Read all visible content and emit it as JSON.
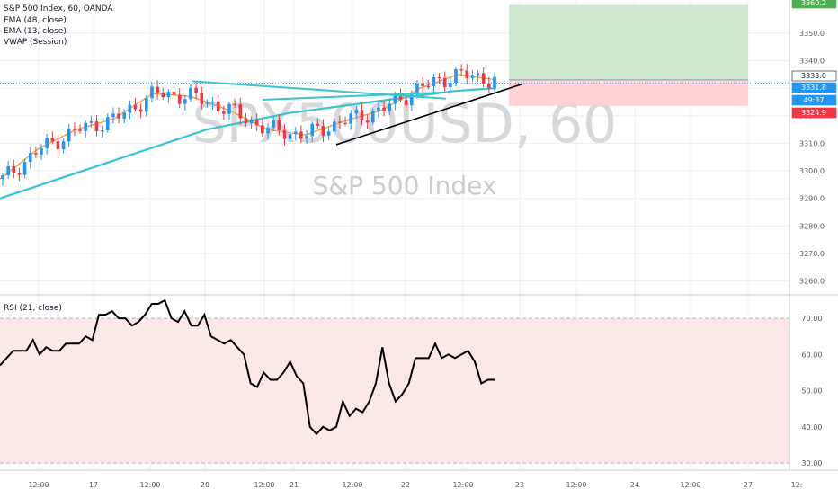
{
  "header": {
    "symbol_line": "S&P 500 Index, 60, OANDA",
    "indicators": [
      "EMA (48, close)",
      "EMA (13, close)",
      "VWAP (Session)"
    ]
  },
  "watermark": {
    "main": "SPX500USD, 60",
    "sub": "S&P 500 Index"
  },
  "rsi_label": "RSI (21, close)",
  "price_badges": [
    {
      "value": "3360.2",
      "bg": "#4caf50",
      "fg": "#ffffff"
    },
    {
      "value": "3333.0",
      "bg": "#ffffff",
      "fg": "#131722"
    },
    {
      "value": "3331.8",
      "bg": "#2196f3",
      "fg": "#ffffff"
    },
    {
      "value": "49:37",
      "bg": "#2196f3",
      "fg": "#ffffff"
    },
    {
      "value": "3324.9",
      "bg": "#f23645",
      "fg": "#ffffff"
    }
  ],
  "colors": {
    "up": "#26a69a",
    "down": "#ef5350",
    "candle_up": "#2196f3",
    "candle_down": "#f23645",
    "ema48": "#3cc4c8",
    "ema13": "#f0a33c",
    "vwap": "#f7d36b",
    "profit_zone": "#c8e6c9",
    "loss_zone": "#ffcdd2",
    "rsi_band": "#fde8e8",
    "grid": "#eef0f4",
    "axis_text": "#555a63",
    "trendline": "#000000",
    "channel": "#3cc4c8"
  },
  "chart_data": [
    {
      "type": "candlestick",
      "title": "S&P 500 Index, 60, OANDA",
      "ylim": [
        3255,
        3362
      ],
      "y_ticks": [
        "3350.0",
        "3340.0",
        "3330.0",
        "3320.0",
        "3310.0",
        "3300.0",
        "3290.0",
        "3280.0",
        "3270.0",
        "3260.0"
      ],
      "x_ticks": [
        "12:00",
        "17",
        "12:00",
        "20",
        "12:00",
        "21",
        "12:00",
        "22",
        "12:00",
        "23",
        "12:00",
        "24",
        "12:00",
        "27",
        "12:"
      ],
      "series": [
        {
          "name": "EMA (48, close)",
          "values": [
            3290,
            3295,
            3300,
            3305,
            3310,
            3315,
            3318,
            3321,
            3323,
            3325,
            3327,
            3329,
            3330
          ]
        },
        {
          "name": "EMA (13, close)",
          "values": [
            3297,
            3308,
            3315,
            3319,
            3328,
            3327,
            3322,
            3315,
            3313,
            3318,
            3322,
            3330,
            3335,
            3333
          ]
        }
      ],
      "position": {
        "entry": 3333.0,
        "target": 3360.2,
        "stop": 3324.9
      }
    },
    {
      "type": "line",
      "title": "RSI (21, close)",
      "ylim": [
        28,
        76
      ],
      "y_ticks": [
        "70.00",
        "60.00",
        "50.00",
        "40.00",
        "30.00"
      ],
      "band": [
        30,
        70
      ],
      "series": [
        {
          "name": "RSI (21, close)",
          "values": [
            57,
            59,
            61,
            61,
            61,
            64,
            60,
            62,
            61,
            61,
            63,
            63,
            63,
            65,
            64,
            71,
            71,
            72,
            70,
            70,
            68,
            69,
            71,
            74,
            74,
            75,
            70,
            69,
            72,
            68,
            68,
            71,
            65,
            64,
            63,
            64,
            62,
            60,
            52,
            51,
            55,
            53,
            53,
            55,
            58,
            54,
            52,
            40,
            38,
            40,
            39,
            40,
            47,
            43,
            45,
            44,
            47,
            52,
            62,
            52,
            47,
            49,
            52,
            59,
            59,
            59,
            63,
            59,
            60,
            59,
            60,
            61,
            58,
            52,
            53,
            53
          ]
        }
      ]
    }
  ]
}
